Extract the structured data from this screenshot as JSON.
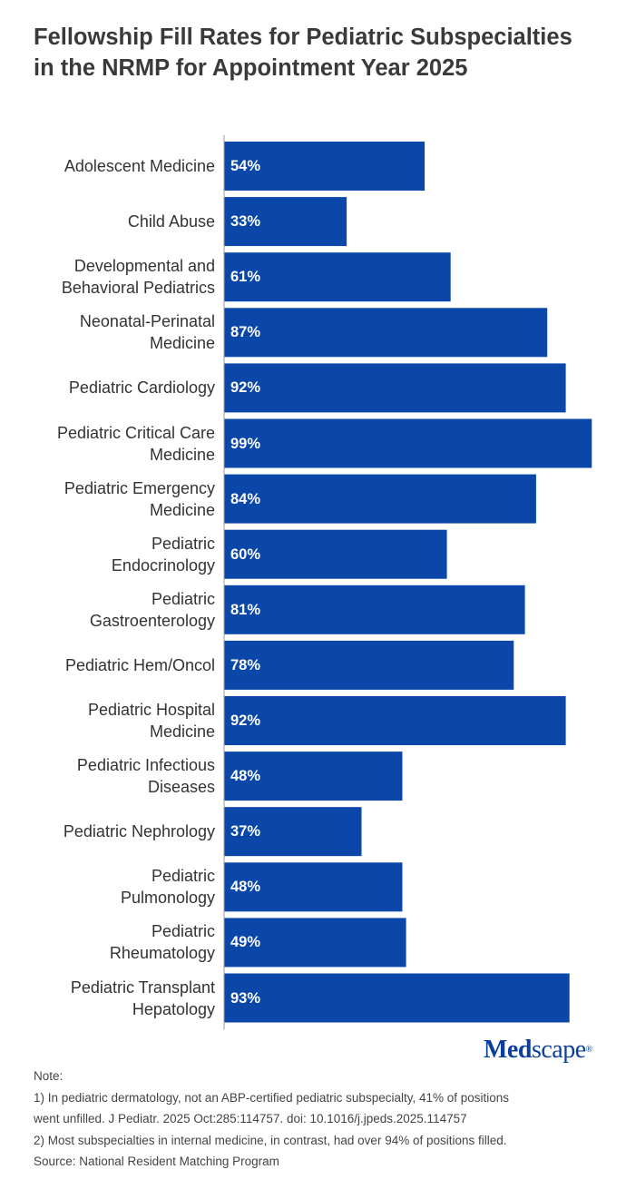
{
  "title": "Fellowship Fill Rates for Pediatric Subspecialties in the NRMP for Appointment Year 2025",
  "chart_data": {
    "type": "bar",
    "orientation": "horizontal",
    "title": "Fellowship Fill Rates for Pediatric Subspecialties in the NRMP for Appointment Year 2025",
    "categories": [
      [
        "Adolescent Medicine"
      ],
      [
        "Child Abuse"
      ],
      [
        "Developmental and",
        "Behavioral Pediatrics"
      ],
      [
        "Neonatal-Perinatal",
        "Medicine"
      ],
      [
        "Pediatric Cardiology"
      ],
      [
        "Pediatric Critical Care",
        "Medicine"
      ],
      [
        "Pediatric Emergency",
        "Medicine"
      ],
      [
        "Pediatric",
        "Endocrinology"
      ],
      [
        "Pediatric",
        "Gastroenterology"
      ],
      [
        "Pediatric Hem/Oncol"
      ],
      [
        "Pediatric Hospital",
        "Medicine"
      ],
      [
        "Pediatric Infectious",
        "Diseases"
      ],
      [
        "Pediatric Nephrology"
      ],
      [
        "Pediatric",
        "Pulmonology"
      ],
      [
        "Pediatric",
        "Rheumatology"
      ],
      [
        "Pediatric Transplant",
        "Hepatology"
      ]
    ],
    "values": [
      54,
      33,
      61,
      87,
      92,
      99,
      84,
      60,
      81,
      78,
      92,
      48,
      37,
      48,
      49,
      93
    ],
    "value_labels": [
      "54%",
      "33%",
      "61%",
      "87%",
      "92%",
      "99%",
      "84%",
      "60%",
      "81%",
      "78%",
      "92%",
      "48%",
      "37%",
      "48%",
      "49%",
      "93%"
    ],
    "xlim": [
      0,
      100
    ],
    "bar_color": "#0b47a8",
    "axis_color": "#999999",
    "grid": false,
    "legend": "none"
  },
  "logo": {
    "part1": "Med",
    "part2": "scape",
    "mark": "®"
  },
  "notes": {
    "heading": "Note:",
    "line1a": "1) In pediatric dermatology, not an ABP-certified pediatric subspecialty, 41% of positions",
    "line1b": "went unfilled. J Pediatr. 2025 Oct:285:114757. doi: 10.1016/j.jpeds.2025.114757",
    "line2": "2) Most subspecialties in internal medicine, in contrast, had over 94% of positions filled.",
    "source": "Source: National Resident Matching Program"
  }
}
